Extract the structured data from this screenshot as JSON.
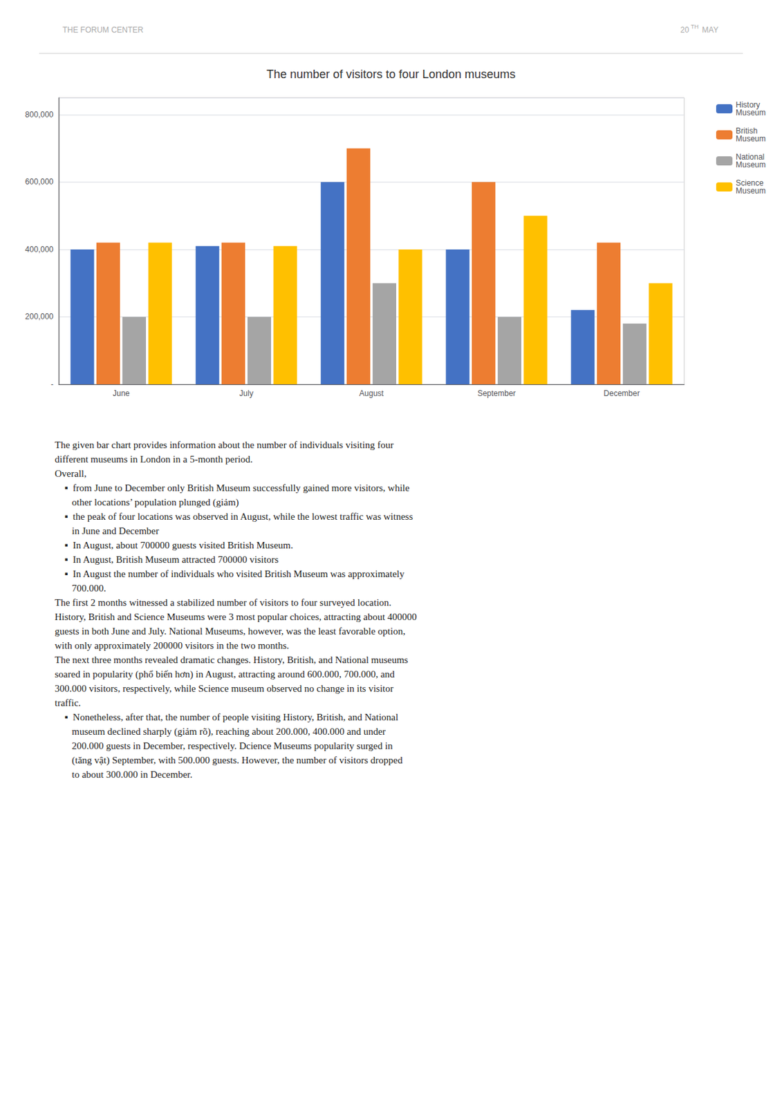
{
  "chart_data": {
    "type": "bar",
    "title": "The number of visitors to four London museums",
    "categories": [
      "June",
      "July",
      "August",
      "September",
      "December"
    ],
    "series": [
      {
        "name": "History\nMuseum",
        "color": "#4472C4",
        "values": [
          400000,
          410000,
          600000,
          400000,
          220000
        ]
      },
      {
        "name": "British\nMuseum",
        "color": "#ED7D31",
        "values": [
          420000,
          420000,
          700000,
          600000,
          420000
        ]
      },
      {
        "name": "National\nMuseum",
        "color": "#A5A5A5",
        "values": [
          200000,
          200000,
          300000,
          200000,
          180000
        ]
      },
      {
        "name": "Science\nMuseum",
        "color": "#FFC000",
        "values": [
          420000,
          410000,
          400000,
          500000,
          300000
        ]
      }
    ],
    "ylim": [
      0,
      850000
    ],
    "yticks": [
      {
        "value": 0,
        "label": "-"
      },
      {
        "value": 200000,
        "label": "200,000"
      },
      {
        "value": 400000,
        "label": "400,000"
      },
      {
        "value": 600000,
        "label": "600,000"
      },
      {
        "value": 800000,
        "label": "800,000"
      }
    ],
    "grid": true,
    "legend": "upper right",
    "annotations": [
      "THE FORUM CENTER",
      "20",
      "TH",
      " MAY",
      "The given bar chart provides information about the number of individuals visiting four\ndifferent museums in London in a 5-month period.\nOverall,\n    ▪  from June to December only British Museum successfully gained more visitors, while\n       other locations’ population plunged (giảm)\n    ▪  the peak of four locations was observed in August, while the lowest traffic was witness\n       in June and December\n    ▪  In August, about 700000 guests visited British Museum.\n    ▪  In August, British Museum attracted 700000 visitors\n    ▪  In August the number of individuals who visited British Museum was approximately\n       700.000.\nThe first 2 months witnessed a stabilized number of visitors to four surveyed location.\nHistory, British and Science Museums were 3 most popular choices, attracting about 400000\nguests in both June and July. National Museums, however, was the least favorable option,\nwith only approximately 200000 visitors in the two months.\nThe next three months revealed dramatic changes. History, British, and National museums\nsoared in popularity (phổ biến hơn) in August, attracting around 600.000, 700.000, and\n300.000 visitors, respectively, while Science museum observed no change in its visitor\ntraffic.\n    ▪  Nonetheless, after that, the number of people visiting History, British, and National\n       museum declined sharply (giảm rõ), reaching about 200.000, 400.000 and under\n       200.000 guests in December, respectively. Dcience Museums popularity surged in\n       (tăng vật) September, with 500.000 guests. However, the number of visitors dropped\n       to about 300.000 in December."
    ]
  }
}
